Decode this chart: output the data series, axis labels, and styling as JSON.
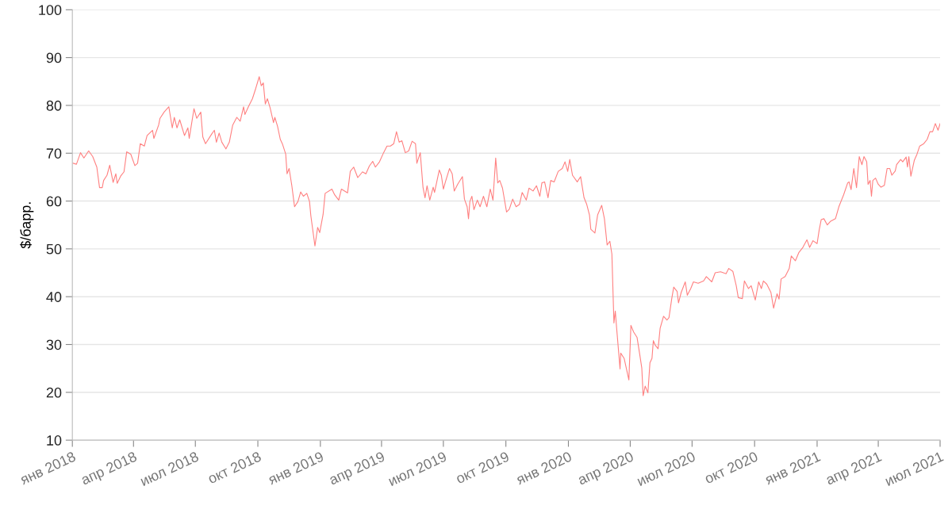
{
  "chart_data": {
    "type": "line",
    "ylabel": "$/барр.",
    "ylim": [
      10,
      100
    ],
    "yticks": [
      10,
      20,
      30,
      40,
      50,
      60,
      70,
      80,
      90,
      100
    ],
    "xlim": [
      "2018-01-01",
      "2021-07-01"
    ],
    "xticks": [
      {
        "value": "2018-01-01",
        "label": "янв 2018"
      },
      {
        "value": "2018-04-01",
        "label": "апр 2018"
      },
      {
        "value": "2018-07-01",
        "label": "июл 2018"
      },
      {
        "value": "2018-10-01",
        "label": "окт 2018"
      },
      {
        "value": "2019-01-01",
        "label": "янв 2019"
      },
      {
        "value": "2019-04-01",
        "label": "апр 2019"
      },
      {
        "value": "2019-07-01",
        "label": "июл 2019"
      },
      {
        "value": "2019-10-01",
        "label": "окт 2019"
      },
      {
        "value": "2020-01-01",
        "label": "янв 2020"
      },
      {
        "value": "2020-04-01",
        "label": "апр 2020"
      },
      {
        "value": "2020-07-01",
        "label": "июл 2020"
      },
      {
        "value": "2020-10-01",
        "label": "окт 2020"
      },
      {
        "value": "2021-01-01",
        "label": "янв 2021"
      },
      {
        "value": "2021-04-01",
        "label": "апр 2021"
      },
      {
        "value": "2021-07-01",
        "label": "июл 2021"
      }
    ],
    "grid": "y",
    "legend": false,
    "marker": "none",
    "line_style": "solid",
    "series": [
      {
        "color": "#ff8080",
        "x": [
          "2018-01-02",
          "2018-01-07",
          "2018-01-13",
          "2018-01-18",
          "2018-01-25",
          "2018-01-31",
          "2018-02-06",
          "2018-02-10",
          "2018-02-14",
          "2018-02-16",
          "2018-02-21",
          "2018-02-25",
          "2018-03-02",
          "2018-03-06",
          "2018-03-08",
          "2018-03-13",
          "2018-03-18",
          "2018-03-22",
          "2018-03-28",
          "2018-04-03",
          "2018-04-07",
          "2018-04-11",
          "2018-04-17",
          "2018-04-21",
          "2018-04-29",
          "2018-05-01",
          "2018-05-08",
          "2018-05-10",
          "2018-05-16",
          "2018-05-23",
          "2018-05-28",
          "2018-05-31",
          "2018-06-04",
          "2018-06-08",
          "2018-06-15",
          "2018-06-20",
          "2018-06-22",
          "2018-06-29",
          "2018-07-03",
          "2018-07-09",
          "2018-07-12",
          "2018-07-16",
          "2018-07-25",
          "2018-07-29",
          "2018-08-01",
          "2018-08-05",
          "2018-08-09",
          "2018-08-15",
          "2018-08-20",
          "2018-08-25",
          "2018-08-31",
          "2018-09-05",
          "2018-09-10",
          "2018-09-12",
          "2018-09-17",
          "2018-09-23",
          "2018-09-28",
          "2018-10-03",
          "2018-10-06",
          "2018-10-09",
          "2018-10-12",
          "2018-10-15",
          "2018-10-19",
          "2018-10-24",
          "2018-10-26",
          "2018-10-30",
          "2018-11-03",
          "2018-11-06",
          "2018-11-11",
          "2018-11-13",
          "2018-11-16",
          "2018-11-20",
          "2018-11-24",
          "2018-11-29",
          "2018-12-03",
          "2018-12-07",
          "2018-12-12",
          "2018-12-16",
          "2018-12-18",
          "2018-12-24",
          "2018-12-28",
          "2018-12-31",
          "2019-01-05",
          "2019-01-08",
          "2019-01-18",
          "2019-01-22",
          "2019-01-28",
          "2019-02-01",
          "2019-02-10",
          "2019-02-14",
          "2019-02-19",
          "2019-02-25",
          "2019-03-04",
          "2019-03-09",
          "2019-03-14",
          "2019-03-19",
          "2019-03-23",
          "2019-03-29",
          "2019-04-04",
          "2019-04-09",
          "2019-04-14",
          "2019-04-19",
          "2019-04-23",
          "2019-04-27",
          "2019-05-01",
          "2019-05-06",
          "2019-05-11",
          "2019-05-16",
          "2019-05-21",
          "2019-05-23",
          "2019-05-28",
          "2019-06-01",
          "2019-06-04",
          "2019-06-07",
          "2019-06-11",
          "2019-06-16",
          "2019-06-18",
          "2019-06-25",
          "2019-06-28",
          "2019-07-01",
          "2019-07-04",
          "2019-07-10",
          "2019-07-14",
          "2019-07-17",
          "2019-07-22",
          "2019-07-29",
          "2019-08-01",
          "2019-08-05",
          "2019-08-07",
          "2019-08-09",
          "2019-08-12",
          "2019-08-15",
          "2019-08-20",
          "2019-08-24",
          "2019-08-29",
          "2019-09-03",
          "2019-09-08",
          "2019-09-12",
          "2019-09-16",
          "2019-09-19",
          "2019-09-22",
          "2019-09-26",
          "2019-10-02",
          "2019-10-06",
          "2019-10-11",
          "2019-10-16",
          "2019-10-21",
          "2019-10-25",
          "2019-10-31",
          "2019-11-04",
          "2019-11-10",
          "2019-11-15",
          "2019-11-20",
          "2019-11-23",
          "2019-11-27",
          "2019-12-02",
          "2019-12-06",
          "2019-12-11",
          "2019-12-17",
          "2019-12-23",
          "2019-12-27",
          "2019-12-31",
          "2020-01-03",
          "2020-01-07",
          "2020-01-14",
          "2020-01-19",
          "2020-01-24",
          "2020-01-28",
          "2020-02-01",
          "2020-02-03",
          "2020-02-09",
          "2020-02-13",
          "2020-02-19",
          "2020-02-23",
          "2020-02-27",
          "2020-03-02",
          "2020-03-05",
          "2020-03-08",
          "2020-03-10",
          "2020-03-12",
          "2020-03-17",
          "2020-03-18",
          "2020-03-23",
          "2020-03-30",
          "2020-04-02",
          "2020-04-06",
          "2020-04-11",
          "2020-04-15",
          "2020-04-18",
          "2020-04-20",
          "2020-04-23",
          "2020-04-27",
          "2020-04-30",
          "2020-05-03",
          "2020-05-05",
          "2020-05-08",
          "2020-05-12",
          "2020-05-15",
          "2020-05-20",
          "2020-05-25",
          "2020-05-28",
          "2020-06-01",
          "2020-06-04",
          "2020-06-09",
          "2020-06-11",
          "2020-06-15",
          "2020-06-21",
          "2020-06-24",
          "2020-06-29",
          "2020-07-03",
          "2020-07-10",
          "2020-07-18",
          "2020-07-22",
          "2020-07-30",
          "2020-08-04",
          "2020-08-12",
          "2020-08-20",
          "2020-08-24",
          "2020-08-30",
          "2020-09-04",
          "2020-09-07",
          "2020-09-13",
          "2020-09-16",
          "2020-09-22",
          "2020-09-26",
          "2020-10-02",
          "2020-10-07",
          "2020-10-11",
          "2020-10-14",
          "2020-10-19",
          "2020-10-25",
          "2020-10-29",
          "2020-11-03",
          "2020-11-06",
          "2020-11-09",
          "2020-11-15",
          "2020-11-21",
          "2020-11-24",
          "2020-11-30",
          "2020-12-05",
          "2020-12-11",
          "2020-12-17",
          "2020-12-21",
          "2020-12-26",
          "2021-01-01",
          "2021-01-04",
          "2021-01-07",
          "2021-01-11",
          "2021-01-16",
          "2021-01-21",
          "2021-01-28",
          "2021-02-02",
          "2021-02-09",
          "2021-02-15",
          "2021-02-17",
          "2021-02-20",
          "2021-02-24",
          "2021-02-28",
          "2021-03-04",
          "2021-03-08",
          "2021-03-11",
          "2021-03-15",
          "2021-03-17",
          "2021-03-20",
          "2021-03-22",
          "2021-03-24",
          "2021-03-28",
          "2021-04-01",
          "2021-04-05",
          "2021-04-10",
          "2021-04-14",
          "2021-04-18",
          "2021-04-21",
          "2021-04-26",
          "2021-04-28",
          "2021-05-04",
          "2021-05-07",
          "2021-05-12",
          "2021-05-14",
          "2021-05-16",
          "2021-05-19",
          "2021-05-24",
          "2021-05-28",
          "2021-06-01",
          "2021-06-07",
          "2021-06-12",
          "2021-06-16",
          "2021-06-20",
          "2021-06-24",
          "2021-06-28",
          "2021-07-01"
        ],
        "values": [
          67.9,
          67.7,
          70.1,
          69.0,
          70.5,
          69.3,
          67.1,
          62.8,
          62.8,
          64.3,
          65.4,
          67.5,
          63.9,
          65.7,
          63.7,
          65.2,
          66.1,
          70.3,
          69.8,
          67.4,
          67.9,
          72.0,
          71.5,
          73.7,
          74.8,
          73.1,
          75.9,
          77.3,
          78.6,
          79.7,
          75.3,
          77.5,
          75.3,
          77.0,
          73.7,
          75.3,
          73.1,
          79.3,
          77.3,
          78.6,
          73.4,
          72.0,
          74.0,
          74.8,
          72.3,
          74.2,
          72.3,
          70.9,
          72.3,
          75.9,
          77.5,
          76.7,
          79.7,
          78.1,
          79.7,
          81.4,
          83.6,
          86.0,
          84.1,
          84.7,
          80.3,
          81.4,
          79.5,
          76.4,
          77.5,
          75.6,
          72.9,
          72.0,
          69.8,
          65.7,
          66.8,
          63.2,
          58.8,
          59.9,
          61.9,
          61.0,
          61.6,
          59.9,
          56.9,
          50.6,
          54.5,
          53.4,
          57.2,
          61.6,
          62.5,
          61.3,
          60.2,
          62.5,
          61.7,
          66.2,
          67.1,
          64.9,
          66.1,
          65.7,
          67.3,
          68.3,
          67.1,
          68.2,
          70.1,
          71.5,
          71.5,
          72.0,
          74.5,
          72.3,
          72.6,
          70.1,
          70.5,
          72.5,
          72.0,
          67.9,
          70.1,
          62.9,
          60.7,
          63.2,
          60.2,
          62.9,
          61.8,
          66.5,
          65.4,
          62.5,
          64.0,
          66.8,
          65.7,
          62.1,
          63.5,
          65.1,
          60.4,
          58.8,
          56.3,
          59.9,
          61.0,
          58.2,
          60.2,
          58.8,
          61.0,
          58.8,
          62.5,
          60.2,
          69.0,
          63.8,
          64.3,
          62.7,
          57.7,
          58.3,
          60.4,
          58.8,
          59.3,
          61.8,
          60.2,
          62.7,
          62.1,
          63.2,
          61.0,
          63.8,
          64.0,
          60.7,
          64.3,
          64.0,
          66.2,
          66.8,
          68.2,
          66.2,
          68.7,
          65.4,
          64.0,
          65.1,
          60.7,
          59.3,
          57.1,
          54.1,
          53.3,
          57.1,
          59.1,
          56.3,
          50.8,
          51.6,
          48.9,
          34.5,
          37.0,
          33.4,
          24.9,
          28.2,
          27.1,
          22.6,
          34.0,
          32.6,
          31.5,
          27.9,
          25.1,
          19.3,
          21.3,
          19.9,
          26.2,
          27.1,
          30.8,
          29.8,
          29.1,
          33.4,
          35.9,
          35.1,
          35.6,
          39.5,
          42.0,
          41.1,
          38.7,
          40.9,
          43.1,
          40.3,
          41.7,
          43.1,
          42.8,
          43.3,
          44.2,
          43.1,
          45.0,
          45.2,
          44.8,
          45.9,
          45.3,
          42.3,
          39.8,
          39.6,
          43.3,
          41.7,
          42.3,
          39.3,
          43.1,
          41.7,
          43.3,
          42.6,
          40.9,
          37.6,
          40.6,
          39.5,
          43.7,
          44.2,
          45.9,
          48.5,
          47.5,
          49.2,
          50.3,
          51.9,
          50.3,
          51.7,
          51.1,
          53.9,
          56.1,
          56.3,
          55.0,
          55.8,
          56.3,
          58.8,
          61.3,
          63.8,
          64.0,
          62.4,
          66.8,
          62.8,
          69.3,
          67.6,
          69.3,
          68.2,
          63.5,
          64.3,
          61.0,
          64.3,
          64.8,
          63.5,
          62.9,
          63.3,
          66.8,
          66.8,
          65.4,
          66.3,
          67.6,
          68.7,
          68.2,
          69.2,
          67.1,
          69.3,
          65.2,
          68.5,
          69.8,
          71.5,
          72.0,
          72.9,
          74.5,
          74.5,
          76.2,
          74.8,
          76.2
        ]
      }
    ]
  }
}
